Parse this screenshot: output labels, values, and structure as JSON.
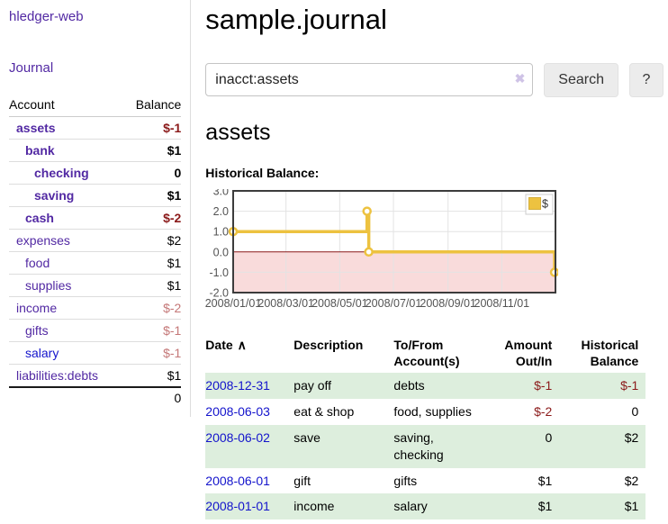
{
  "app": {
    "title": "hledger-web"
  },
  "colors": {
    "purple_link": "#5229a3",
    "blue_link": "#1414cc",
    "negative_strong": "#8b1a1a",
    "negative_soft": "#c47777",
    "row_stripe_green": "#ddeedd",
    "chart_series_yellow": "#edc240",
    "chart_negative_fill": "#f9dbdb",
    "zero_line": "#8b1a1a"
  },
  "sidebar": {
    "journal_link": "Journal",
    "accounts_table": {
      "headers": {
        "account": "Account",
        "balance": "Balance"
      },
      "rows": [
        {
          "account": "assets",
          "indent": 0,
          "link_class": "bold",
          "balance": "$-1",
          "bal_class": "bold neg-strong"
        },
        {
          "account": "bank",
          "indent": 1,
          "link_class": "bold",
          "balance": "$1",
          "bal_class": "bold"
        },
        {
          "account": "checking",
          "indent": 2,
          "link_class": "bold",
          "balance": "0",
          "bal_class": "bold"
        },
        {
          "account": "saving",
          "indent": 2,
          "link_class": "bold",
          "balance": "$1",
          "bal_class": "bold"
        },
        {
          "account": "cash",
          "indent": 1,
          "link_class": "bold",
          "balance": "$-2",
          "bal_class": "bold neg-strong"
        },
        {
          "account": "expenses",
          "indent": 0,
          "link_class": "",
          "balance": "$2",
          "bal_class": ""
        },
        {
          "account": "food",
          "indent": 1,
          "link_class": "",
          "balance": "$1",
          "bal_class": ""
        },
        {
          "account": "supplies",
          "indent": 1,
          "link_class": "",
          "balance": "$1",
          "bal_class": ""
        },
        {
          "account": "income",
          "indent": 0,
          "link_class": "",
          "balance": "$-2",
          "bal_class": "neg-weak"
        },
        {
          "account": "gifts",
          "indent": 1,
          "link_class": "",
          "balance": "$-1",
          "bal_class": "neg-weak"
        },
        {
          "account": "salary",
          "indent": 1,
          "link_class": "blue",
          "balance": "$-1",
          "bal_class": "neg-weak"
        },
        {
          "account": "liabilities:debts",
          "indent": 0,
          "link_class": "",
          "balance": "$1",
          "bal_class": ""
        }
      ],
      "total": "0"
    }
  },
  "main": {
    "title": "sample.journal",
    "search": {
      "value": "inacct:assets",
      "clear_icon": "✖",
      "search_button": "Search",
      "help_button": "?"
    },
    "account_heading": "assets",
    "chart_label": "Historical Balance:"
  },
  "chart_data": {
    "type": "line",
    "mode": "steps",
    "title": "Historical Balance of assets",
    "series": [
      {
        "name": "$",
        "color": "#edc240",
        "points": [
          [
            "2008-01-01",
            1.0
          ],
          [
            "2008-06-01",
            2.0
          ],
          [
            "2008-06-03",
            0.0
          ],
          [
            "2008-12-31",
            -1.0
          ]
        ]
      }
    ],
    "x_range": [
      "2008-01-01",
      "2009-01-01"
    ],
    "x_ticks": [
      "2008/01/01",
      "2008/03/01",
      "2008/05/01",
      "2008/07/01",
      "2008/09/01",
      "2008/11/01"
    ],
    "y_ticks": [
      3.0,
      2.0,
      1.0,
      0.0,
      -1.0,
      -2.0
    ],
    "ylim": [
      -2,
      3
    ],
    "grid": true,
    "negative_fill": "#f9dbdb",
    "zero_line_color": "#8b1a1a",
    "legend": {
      "label": "$",
      "position": "top-right"
    }
  },
  "transactions": {
    "sort_icon": "∧",
    "headers": [
      {
        "label": "Date"
      },
      {
        "label": "Description"
      },
      {
        "label": "To/From Account(s)"
      },
      {
        "label": "Amount Out/In",
        "align": "right"
      },
      {
        "label": "Historical Balance",
        "align": "right"
      }
    ],
    "rows": [
      {
        "date": "2008-12-31",
        "description": "pay off",
        "accounts": "debts",
        "amount": "$-1",
        "amount_neg": true,
        "balance": "$-1",
        "balance_neg": true
      },
      {
        "date": "2008-06-03",
        "description": "eat & shop",
        "accounts": "food, supplies",
        "amount": "$-2",
        "amount_neg": true,
        "balance": "0",
        "balance_neg": false
      },
      {
        "date": "2008-06-02",
        "description": "save",
        "accounts": "saving, checking",
        "amount": "0",
        "amount_neg": false,
        "balance": "$2",
        "balance_neg": false
      },
      {
        "date": "2008-06-01",
        "description": "gift",
        "accounts": "gifts",
        "amount": "$1",
        "amount_neg": false,
        "balance": "$2",
        "balance_neg": false
      },
      {
        "date": "2008-01-01",
        "description": "income",
        "accounts": "salary",
        "amount": "$1",
        "amount_neg": false,
        "balance": "$1",
        "balance_neg": false
      }
    ]
  }
}
